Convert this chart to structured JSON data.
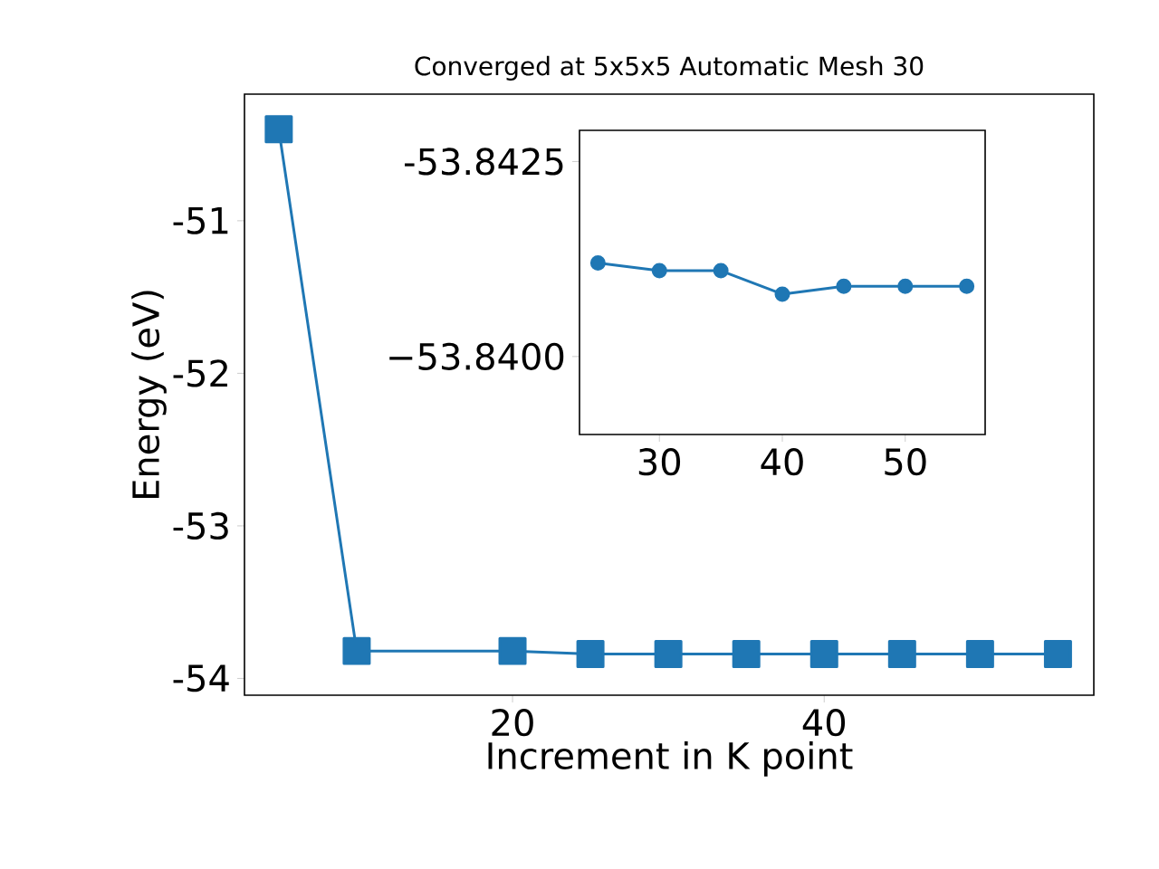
{
  "chart_data": [
    {
      "type": "line",
      "title": "Converged at 5x5x5 Automatic Mesh 30",
      "xlabel": "Increment in K point",
      "ylabel": "Energy (eV)",
      "x": [
        5,
        10,
        20,
        25,
        30,
        35,
        40,
        45,
        50,
        55
      ],
      "values": [
        -50.4,
        -53.82,
        -53.82,
        -53.84,
        -53.84,
        -53.84,
        -53.84,
        -53.84,
        -53.84,
        -53.84
      ],
      "color": "#1f77b4",
      "marker": "square",
      "line_style": "solid",
      "xlim": [
        2.8,
        57.3
      ],
      "ylim": [
        -54.11,
        -50.17
      ],
      "xticks": [
        20,
        40
      ],
      "yticks": [
        -54,
        -53,
        -52,
        -51
      ]
    },
    {
      "type": "line",
      "x": [
        25,
        30,
        35,
        40,
        45,
        50,
        55
      ],
      "values": [
        -53.8412,
        -53.8411,
        -53.8411,
        -53.8408,
        -53.8409,
        -53.8409,
        -53.8409
      ],
      "color": "#1f77b4",
      "marker": "circle",
      "line_style": "solid",
      "xlim": [
        23.5,
        56.5
      ],
      "ylim": [
        -53.839,
        -53.8429
      ],
      "xticks": [
        30,
        40,
        50
      ],
      "yticks": [
        -53.8425,
        {
          "value": -53.84,
          "label": "−53.8400"
        }
      ]
    }
  ]
}
